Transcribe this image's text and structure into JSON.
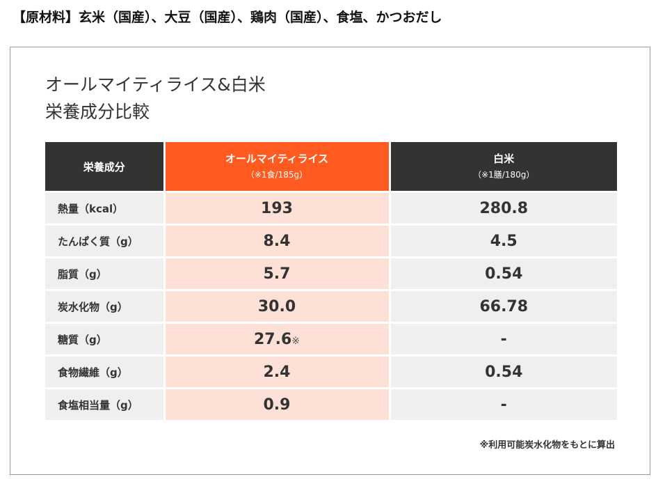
{
  "ingredients_text": "【原材料】玄米（国産）、大豆（国産）、鶏肉（国産）、食塩、かつおだし",
  "card": {
    "title_line1": "オールマイティライス&白米",
    "title_line2": "栄養成分比較"
  },
  "table": {
    "header": {
      "name": "栄養成分",
      "col_a_title": "オールマイティライス",
      "col_a_sub": "（※1食/185g）",
      "col_b_title": "白米",
      "col_b_sub": "（※1膳/180g）"
    },
    "rows": [
      {
        "name": "熱量（kcal）",
        "a": "193",
        "a_mark": "",
        "b": "280.8"
      },
      {
        "name": "たんぱく質（g）",
        "a": "8.4",
        "a_mark": "",
        "b": "4.5"
      },
      {
        "name": "脂質（g）",
        "a": "5.7",
        "a_mark": "",
        "b": "0.54"
      },
      {
        "name": "炭水化物（g）",
        "a": "30.0",
        "a_mark": "",
        "b": "66.78"
      },
      {
        "name": "糖質（g）",
        "a": "27.6",
        "a_mark": "※",
        "b": "-"
      },
      {
        "name": "食物繊維（g）",
        "a": "2.4",
        "a_mark": "",
        "b": "0.54"
      },
      {
        "name": "食塩相当量（g）",
        "a": "0.9",
        "a_mark": "",
        "b": "-"
      }
    ]
  },
  "footnote": "※利用可能炭水化物をもとに算出",
  "colors": {
    "accent_header": "#ff5a1f",
    "accent_cell": "#fde0d6",
    "dark_header": "#333333",
    "neutral_cell": "#efefef"
  }
}
